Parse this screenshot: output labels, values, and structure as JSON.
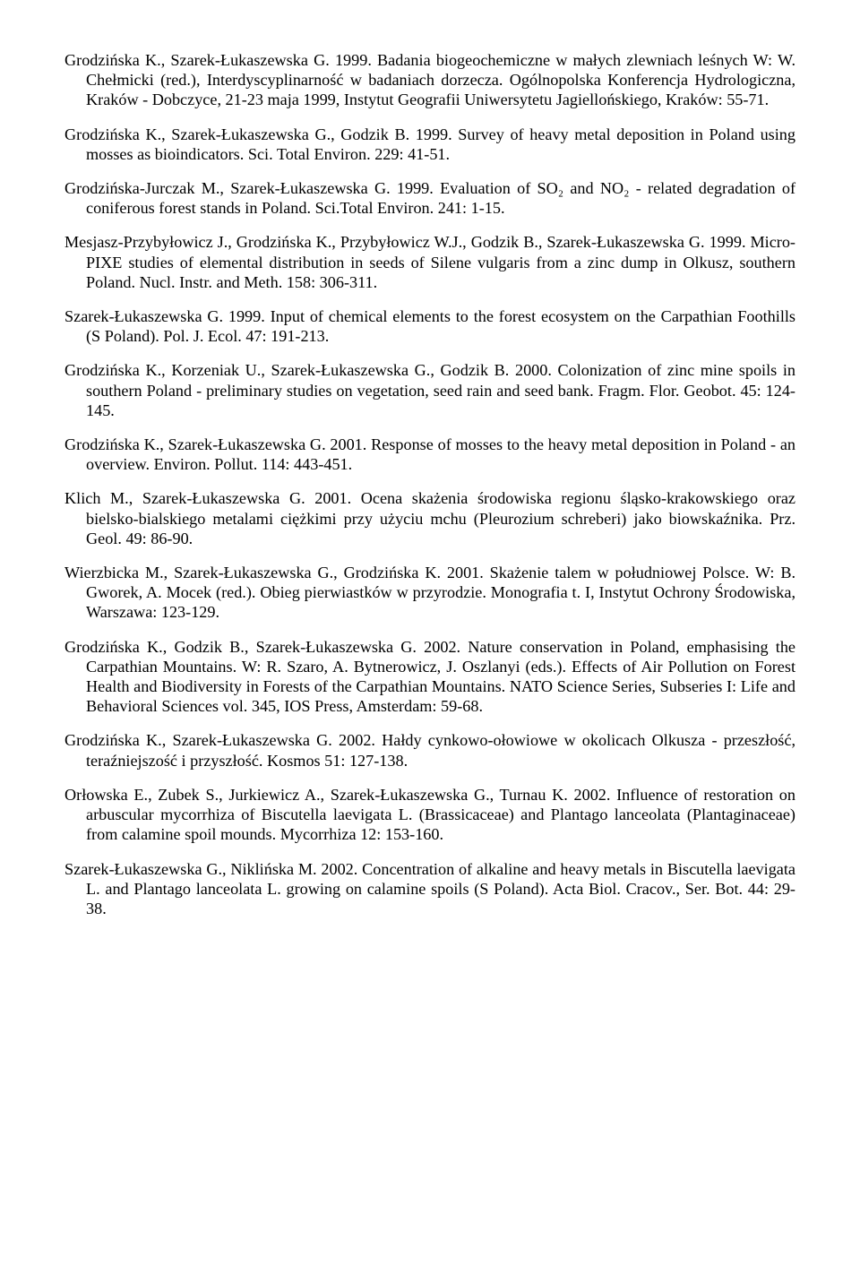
{
  "refs": [
    "Grodzińska K., Szarek-Łukaszewska G. 1999. Badania biogeochemiczne w małych zlewniach leśnych W: W. Chełmicki (red.), Interdyscyplinarność w badaniach dorzecza. Ogólnopolska Konferencja Hydrologiczna, Kraków - Dobczyce, 21-23 maja 1999, Instytut Geografii Uniwersytetu Jagiellońskiego, Kraków: 55-71.",
    "Grodzińska K., Szarek-Łukaszewska G., Godzik B. 1999. Survey of heavy metal deposition in Poland using mosses as bioindicators. Sci. Total Environ. 229: 41-51.",
    "Grodzińska-Jurczak M., Szarek-Łukaszewska G. 1999. Evaluation of SO₂ and NO₂ - related degradation of coniferous forest stands in Poland. Sci.Total Environ. 241: 1-15.",
    "Mesjasz-Przybyłowicz J., Grodzińska K., Przybyłowicz W.J., Godzik B., Szarek-Łukaszewska G. 1999. Micro-PIXE studies of elemental distribution in seeds of Silene vulgaris from a zinc dump in Olkusz, southern Poland. Nucl. Instr. and Meth. 158: 306-311.",
    "Szarek-Łukaszewska G. 1999. Input of chemical elements to the forest ecosystem on the Carpathian Foothills (S Poland). Pol. J. Ecol. 47: 191-213.",
    "Grodzińska K., Korzeniak U., Szarek-Łukaszewska G., Godzik B. 2000. Colonization of zinc mine spoils in southern Poland - preliminary studies on vegetation, seed rain and seed bank. Fragm. Flor. Geobot. 45: 124-145.",
    "Grodzińska K., Szarek-Łukaszewska G. 2001. Response of mosses to the heavy metal deposition in Poland - an overview. Environ. Pollut. 114: 443-451.",
    "Klich M., Szarek-Łukaszewska G. 2001. Ocena skażenia środowiska regionu śląsko-krakowskiego oraz bielsko-bialskiego metalami ciężkimi przy użyciu mchu (Pleurozium schreberi) jako biowskaźnika. Prz. Geol. 49: 86-90.",
    "Wierzbicka M., Szarek-Łukaszewska G., Grodzińska K. 2001. Skażenie talem w południowej Polsce. W: B. Gworek, A. Mocek (red.). Obieg pierwiastków w przyrodzie. Monografia t. I, Instytut Ochrony Środowiska, Warszawa: 123-129.",
    "Grodzińska K., Godzik B., Szarek-Łukaszewska G. 2002. Nature conservation in Poland, emphasising the Carpathian Mountains. W: R. Szaro, A. Bytnerowicz, J. Oszlanyi (eds.). Effects of Air Pollution on Forest Health and Biodiversity in Forests of the Carpathian Mountains. NATO Science Series, Subseries I: Life and Behavioral Sciences vol. 345, IOS Press, Amsterdam: 59-68.",
    "Grodzińska K., Szarek-Łukaszewska G. 2002. Hałdy cynkowo-ołowiowe w okolicach Olkusza - przeszłość, teraźniejszość i przyszłość. Kosmos 51: 127-138.",
    "Orłowska E., Zubek S., Jurkiewicz A., Szarek-Łukaszewska G., Turnau K. 2002. Influence of restoration on arbuscular mycorrhiza of Biscutella laevigata L. (Brassicaceae) and Plantago lanceolata (Plantaginaceae) from calamine spoil mounds. Mycorrhiza 12: 153-160.",
    "Szarek-Łukaszewska G., Niklińska M. 2002. Concentration of alkaline and heavy metals in Biscutella laevigata L. and Plantago lanceolata L. growing on calamine spoils (S Poland). Acta Biol. Cracov., Ser. Bot. 44: 29-38."
  ]
}
